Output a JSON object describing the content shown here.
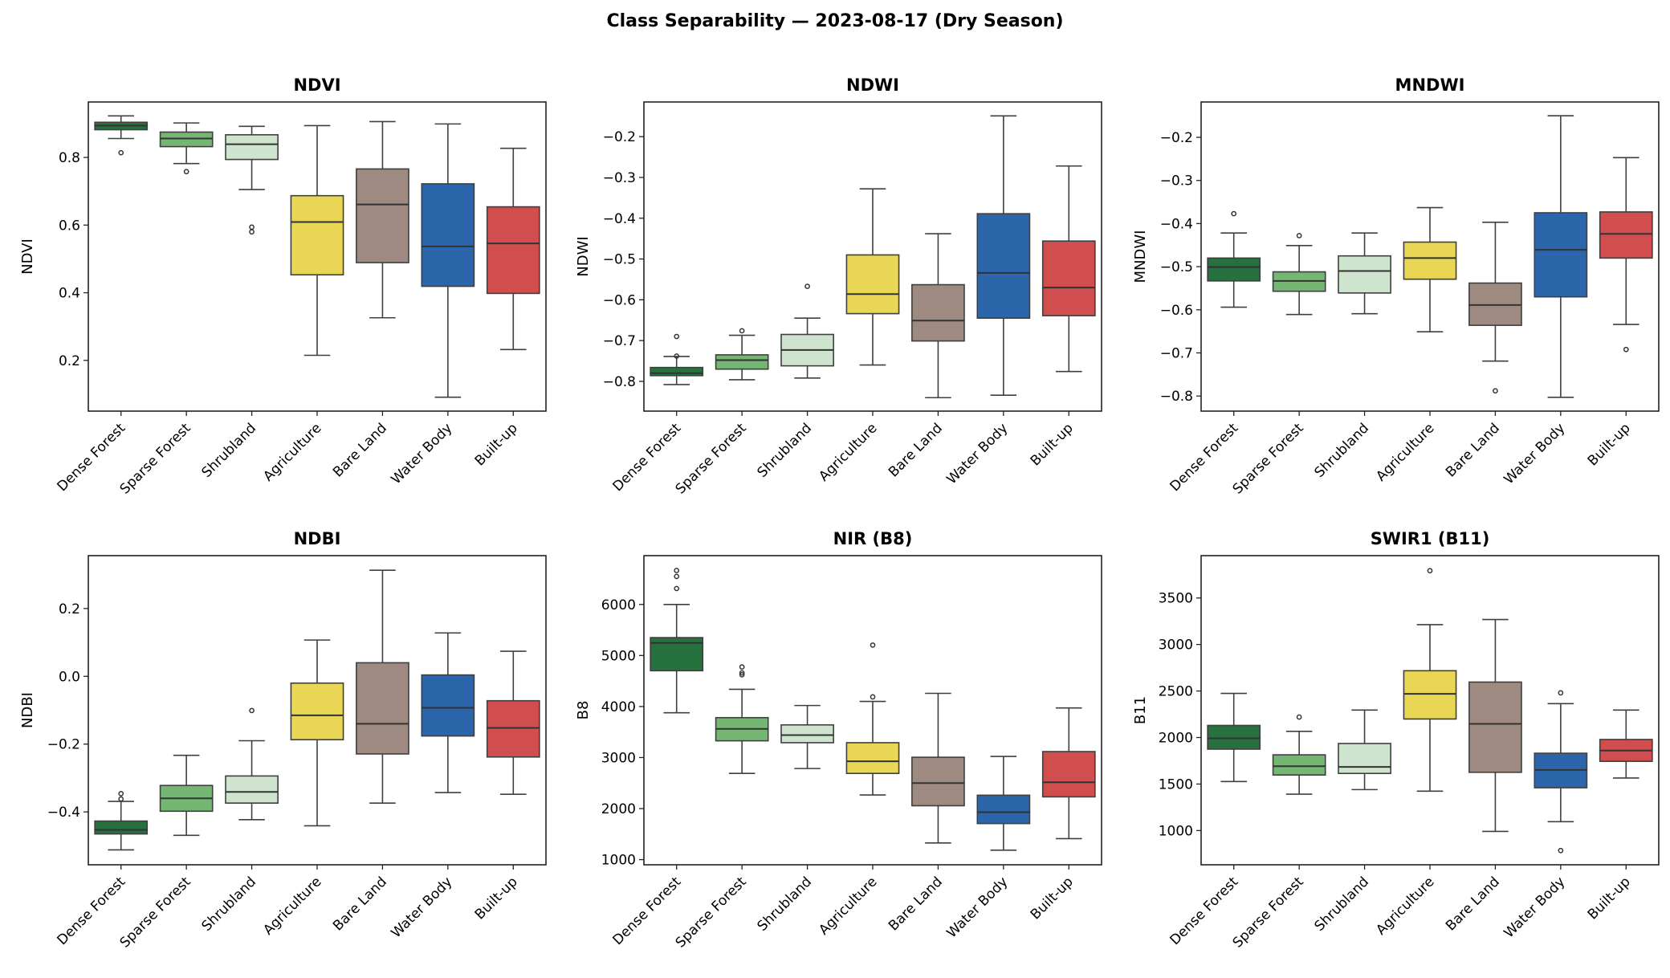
{
  "chart_data": {
    "type": "box",
    "title": "Class Separability — 2023-08-17 (Dry Season)",
    "categories": [
      "Dense Forest",
      "Sparse Forest",
      "Shrubland",
      "Agriculture",
      "Bare Land",
      "Water Body",
      "Built-up"
    ],
    "colors": [
      "#27713f",
      "#74b772",
      "#cfe4cf",
      "#e8d654",
      "#9e8a81",
      "#2b66ab",
      "#d04e4e"
    ],
    "grid": false,
    "panels": [
      {
        "title": "NDVI",
        "ylabel": "NDVI",
        "ylim": [
          0.05,
          0.964
        ],
        "yticks": [
          {
            "v": 0.2,
            "label": "0.2"
          },
          {
            "v": 0.4,
            "label": "0.4"
          },
          {
            "v": 0.6,
            "label": "0.6"
          },
          {
            "v": 0.8,
            "label": "0.8"
          }
        ],
        "boxes": [
          {
            "low": 0.856,
            "q1": 0.882,
            "med": 0.894,
            "q3": 0.904,
            "high": 0.923,
            "outliers": [
              0.814
            ]
          },
          {
            "low": 0.782,
            "q1": 0.832,
            "med": 0.856,
            "q3": 0.875,
            "high": 0.902,
            "outliers": [
              0.758
            ]
          },
          {
            "low": 0.705,
            "q1": 0.794,
            "med": 0.839,
            "q3": 0.867,
            "high": 0.892,
            "outliers": [
              0.594,
              0.58
            ]
          },
          {
            "low": 0.215,
            "q1": 0.453,
            "med": 0.609,
            "q3": 0.687,
            "high": 0.894,
            "outliers": []
          },
          {
            "low": 0.326,
            "q1": 0.489,
            "med": 0.661,
            "q3": 0.766,
            "high": 0.906,
            "outliers": []
          },
          {
            "low": 0.091,
            "q1": 0.419,
            "med": 0.537,
            "q3": 0.722,
            "high": 0.899,
            "outliers": []
          },
          {
            "low": 0.232,
            "q1": 0.398,
            "med": 0.546,
            "q3": 0.654,
            "high": 0.827,
            "outliers": []
          }
        ]
      },
      {
        "title": "NDWI",
        "ylabel": "NDWI",
        "ylim": [
          -0.873,
          -0.115
        ],
        "yticks": [
          {
            "v": -0.8,
            "label": "−0.8"
          },
          {
            "v": -0.7,
            "label": "−0.7"
          },
          {
            "v": -0.6,
            "label": "−0.6"
          },
          {
            "v": -0.5,
            "label": "−0.5"
          },
          {
            "v": -0.4,
            "label": "−0.4"
          },
          {
            "v": -0.3,
            "label": "−0.3"
          },
          {
            "v": -0.2,
            "label": "−0.2"
          }
        ],
        "boxes": [
          {
            "low": -0.808,
            "q1": -0.786,
            "med": -0.78,
            "q3": -0.766,
            "high": -0.739,
            "outliers": [
              -0.69,
              -0.738
            ]
          },
          {
            "low": -0.796,
            "q1": -0.77,
            "med": -0.748,
            "q3": -0.735,
            "high": -0.687,
            "outliers": [
              -0.676
            ]
          },
          {
            "low": -0.792,
            "q1": -0.762,
            "med": -0.723,
            "q3": -0.685,
            "high": -0.645,
            "outliers": [
              -0.567
            ]
          },
          {
            "low": -0.76,
            "q1": -0.634,
            "med": -0.586,
            "q3": -0.49,
            "high": -0.328,
            "outliers": []
          },
          {
            "low": -0.84,
            "q1": -0.701,
            "med": -0.651,
            "q3": -0.563,
            "high": -0.438,
            "outliers": []
          },
          {
            "low": -0.834,
            "q1": -0.645,
            "med": -0.534,
            "q3": -0.389,
            "high": -0.149,
            "outliers": []
          },
          {
            "low": -0.776,
            "q1": -0.639,
            "med": -0.57,
            "q3": -0.456,
            "high": -0.272,
            "outliers": []
          }
        ]
      },
      {
        "title": "MNDWI",
        "ylabel": "MNDWI",
        "ylim": [
          -0.835,
          -0.118
        ],
        "yticks": [
          {
            "v": -0.8,
            "label": "−0.8"
          },
          {
            "v": -0.7,
            "label": "−0.7"
          },
          {
            "v": -0.6,
            "label": "−0.6"
          },
          {
            "v": -0.5,
            "label": "−0.5"
          },
          {
            "v": -0.4,
            "label": "−0.4"
          },
          {
            "v": -0.3,
            "label": "−0.3"
          },
          {
            "v": -0.2,
            "label": "−0.2"
          }
        ],
        "boxes": [
          {
            "low": -0.594,
            "q1": -0.533,
            "med": -0.501,
            "q3": -0.48,
            "high": -0.422,
            "outliers": [
              -0.377
            ]
          },
          {
            "low": -0.611,
            "q1": -0.557,
            "med": -0.533,
            "q3": -0.512,
            "high": -0.451,
            "outliers": [
              -0.428
            ]
          },
          {
            "low": -0.609,
            "q1": -0.561,
            "med": -0.51,
            "q3": -0.475,
            "high": -0.422,
            "outliers": []
          },
          {
            "low": -0.651,
            "q1": -0.529,
            "med": -0.48,
            "q3": -0.443,
            "high": -0.363,
            "outliers": []
          },
          {
            "low": -0.719,
            "q1": -0.636,
            "med": -0.589,
            "q3": -0.538,
            "high": -0.397,
            "outliers": [
              -0.788
            ]
          },
          {
            "low": -0.803,
            "q1": -0.57,
            "med": -0.461,
            "q3": -0.375,
            "high": -0.15,
            "outliers": []
          },
          {
            "low": -0.634,
            "q1": -0.48,
            "med": -0.424,
            "q3": -0.373,
            "high": -0.247,
            "outliers": [
              -0.692
            ]
          }
        ]
      },
      {
        "title": "NDBI",
        "ylabel": "NDBI",
        "ylim": [
          -0.556,
          0.356
        ],
        "yticks": [
          {
            "v": -0.4,
            "label": "−0.4"
          },
          {
            "v": -0.2,
            "label": "−0.2"
          },
          {
            "v": 0.0,
            "label": "0.0"
          },
          {
            "v": 0.2,
            "label": "0.2"
          }
        ],
        "boxes": [
          {
            "low": -0.512,
            "q1": -0.465,
            "med": -0.453,
            "q3": -0.427,
            "high": -0.369,
            "outliers": [
              -0.346,
              -0.362
            ]
          },
          {
            "low": -0.469,
            "q1": -0.398,
            "med": -0.36,
            "q3": -0.322,
            "high": -0.233,
            "outliers": []
          },
          {
            "low": -0.423,
            "q1": -0.374,
            "med": -0.341,
            "q3": -0.294,
            "high": -0.19,
            "outliers": [
              -0.101
            ]
          },
          {
            "low": -0.441,
            "q1": -0.187,
            "med": -0.115,
            "q3": -0.02,
            "high": 0.107,
            "outliers": []
          },
          {
            "low": -0.374,
            "q1": -0.229,
            "med": -0.14,
            "q3": 0.04,
            "high": 0.313,
            "outliers": []
          },
          {
            "low": -0.343,
            "q1": -0.176,
            "med": -0.093,
            "q3": 0.004,
            "high": 0.128,
            "outliers": []
          },
          {
            "low": -0.348,
            "q1": -0.238,
            "med": -0.152,
            "q3": -0.072,
            "high": 0.074,
            "outliers": []
          }
        ]
      },
      {
        "title": "NIR (B8)",
        "ylabel": "B8",
        "ylim": [
          899,
          6956
        ],
        "yticks": [
          {
            "v": 1000,
            "label": "1000"
          },
          {
            "v": 2000,
            "label": "2000"
          },
          {
            "v": 3000,
            "label": "3000"
          },
          {
            "v": 4000,
            "label": "4000"
          },
          {
            "v": 5000,
            "label": "5000"
          },
          {
            "v": 6000,
            "label": "6000"
          }
        ],
        "boxes": [
          {
            "low": 3877,
            "q1": 4701,
            "med": 5245,
            "q3": 5350,
            "high": 6000,
            "outliers": [
              6665,
              6549,
              6312
            ]
          },
          {
            "low": 2689,
            "q1": 3328,
            "med": 3561,
            "q3": 3782,
            "high": 4337,
            "outliers": [
              4775,
              4659,
              4622
            ]
          },
          {
            "low": 2785,
            "q1": 3291,
            "med": 3439,
            "q3": 3640,
            "high": 4020,
            "outliers": []
          },
          {
            "low": 2267,
            "q1": 2689,
            "med": 2927,
            "q3": 3291,
            "high": 4099,
            "outliers": [
              5203,
              4189
            ]
          },
          {
            "low": 1327,
            "q1": 2056,
            "med": 2499,
            "q3": 3006,
            "high": 4258,
            "outliers": []
          },
          {
            "low": 1185,
            "q1": 1707,
            "med": 1929,
            "q3": 2262,
            "high": 3022,
            "outliers": []
          },
          {
            "low": 1412,
            "q1": 2230,
            "med": 2515,
            "q3": 3117,
            "high": 3972,
            "outliers": []
          }
        ]
      },
      {
        "title": "SWIR1 (B11)",
        "ylabel": "B11",
        "ylim": [
          632,
          3955
        ],
        "yticks": [
          {
            "v": 1000,
            "label": "1000"
          },
          {
            "v": 1500,
            "label": "1500"
          },
          {
            "v": 2000,
            "label": "2000"
          },
          {
            "v": 2500,
            "label": "2500"
          },
          {
            "v": 3000,
            "label": "3000"
          },
          {
            "v": 3500,
            "label": "3500"
          }
        ],
        "boxes": [
          {
            "low": 1527,
            "q1": 1875,
            "med": 1991,
            "q3": 2130,
            "high": 2474,
            "outliers": []
          },
          {
            "low": 1391,
            "q1": 1597,
            "med": 1692,
            "q3": 1814,
            "high": 2066,
            "outliers": [
              2220
            ]
          },
          {
            "low": 1440,
            "q1": 1614,
            "med": 1684,
            "q3": 1936,
            "high": 2295,
            "outliers": []
          },
          {
            "low": 1423,
            "q1": 2199,
            "med": 2469,
            "q3": 2718,
            "high": 3213,
            "outliers": [
              3793
            ]
          },
          {
            "low": 991,
            "q1": 1626,
            "med": 2147,
            "q3": 2596,
            "high": 3268,
            "outliers": []
          },
          {
            "low": 1095,
            "q1": 1460,
            "med": 1652,
            "q3": 1831,
            "high": 2364,
            "outliers": [
              2480,
              785
            ]
          },
          {
            "low": 1565,
            "q1": 1744,
            "med": 1860,
            "q3": 1979,
            "high": 2295,
            "outliers": []
          }
        ]
      }
    ]
  }
}
